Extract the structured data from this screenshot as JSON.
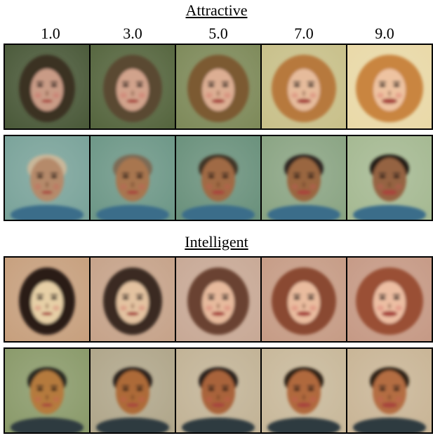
{
  "sections": [
    {
      "title": "Attractive",
      "rows": [
        {
          "subject": "female",
          "bg": [
            "#4b5a3a",
            "#56663f",
            "#7e8a5a",
            "#c8c08a",
            "#e9d9a8"
          ],
          "hair": [
            "#3b3322",
            "#5a4a30",
            "#7c5a33",
            "#b7793c",
            "#c9853f"
          ],
          "skin": [
            "#c99b86",
            "#d1a38c",
            "#dcae93",
            "#e6bb9b",
            "#eec3a1"
          ]
        },
        {
          "subject": "male",
          "bg": [
            "#7aa39a",
            "#6d9787",
            "#6a917c",
            "#8aa483",
            "#a5b992"
          ],
          "hair": [
            "#c9b79a",
            "#7b6b55",
            "#3f3428",
            "#2d2620",
            "#221d18"
          ],
          "skin": [
            "#b58a6a",
            "#a8764f",
            "#a06a44",
            "#9a6641",
            "#956443"
          ]
        }
      ]
    },
    {
      "title": "Intelligent",
      "rows": [
        {
          "subject": "female",
          "bg": [
            "#c7a07e",
            "#c6a38a",
            "#c8a996",
            "#c69c86",
            "#c69a86"
          ],
          "hair": [
            "#2a1c16",
            "#3a2a22",
            "#6a4230",
            "#8a4a30",
            "#9a5036"
          ],
          "skin": [
            "#e6cfa6",
            "#e3c2a0",
            "#e6b99c",
            "#e9bb9e",
            "#ecbda2"
          ]
        },
        {
          "subject": "male",
          "bg": [
            "#8a9a6a",
            "#b0a68a",
            "#c2b396",
            "#c8b89a",
            "#c9b596"
          ],
          "hair": [
            "#2a2a22",
            "#2a241c",
            "#2c221a",
            "#2e2218",
            "#2e2016"
          ],
          "skin": [
            "#b57a3e",
            "#ad6a38",
            "#a9633a",
            "#b0693e",
            "#b46d42"
          ]
        }
      ]
    }
  ],
  "columns": [
    "1.0",
    "3.0",
    "5.0",
    "7.0",
    "9.0"
  ]
}
